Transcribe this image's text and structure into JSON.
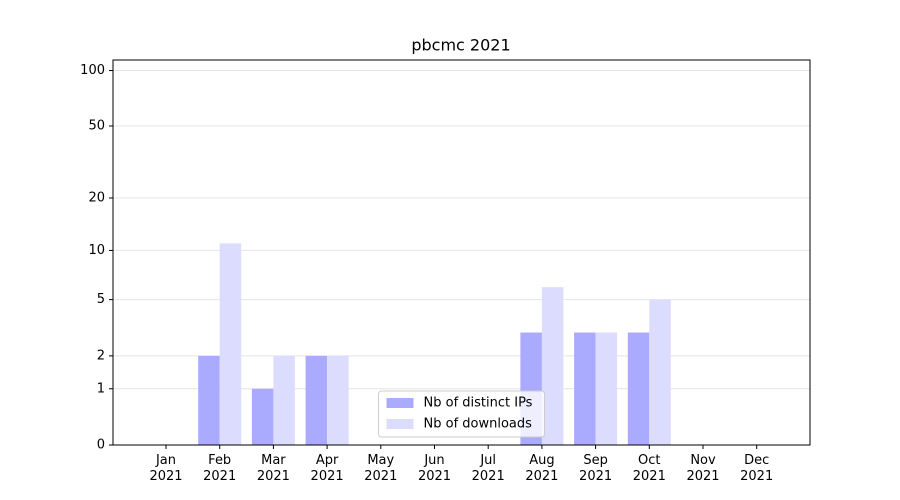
{
  "chart_data": {
    "type": "bar",
    "title": "pbcmc 2021",
    "scale": "log1p",
    "categories": [
      "Jan 2021",
      "Feb 2021",
      "Mar 2021",
      "Apr 2021",
      "May 2021",
      "Jun 2021",
      "Jul 2021",
      "Aug 2021",
      "Sep 2021",
      "Oct 2021",
      "Nov 2021",
      "Dec 2021"
    ],
    "series": [
      {
        "name": "Nb of distinct IPs",
        "color": "#aaaaff",
        "values": [
          0,
          2,
          1,
          2,
          0,
          0,
          0,
          3,
          3,
          3,
          0,
          0
        ]
      },
      {
        "name": "Nb of downloads",
        "color": "#dcdcff",
        "values": [
          0,
          11,
          2,
          2,
          0,
          0,
          0,
          6,
          3,
          5,
          0,
          0
        ]
      }
    ],
    "ylim": [
      0,
      114
    ],
    "yticks": [
      0,
      1,
      2,
      5,
      10,
      20,
      50,
      100
    ],
    "grid": true,
    "legend": "lower center"
  }
}
